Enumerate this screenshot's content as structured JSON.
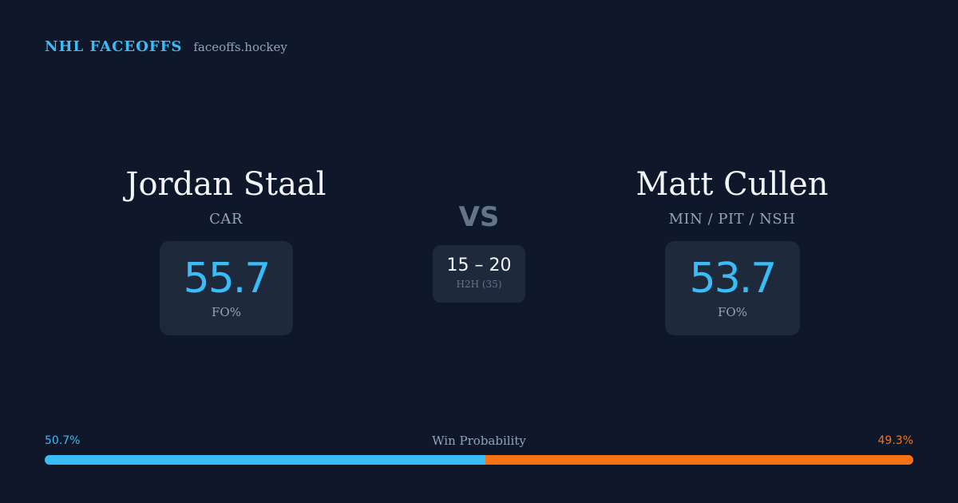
{
  "brand": {
    "name": "NHL FACEOFFS",
    "url": "faceoffs.hockey"
  },
  "player_left": {
    "name": "Jordan Staal",
    "team": "CAR",
    "fo_value": "55.7",
    "fo_label": "FO%"
  },
  "player_right": {
    "name": "Matt Cullen",
    "team": "MIN / PIT / NSH",
    "fo_value": "53.7",
    "fo_label": "FO%"
  },
  "versus": "VS",
  "h2h": {
    "score": "15 – 20",
    "label": "H2H (35)"
  },
  "win_probability": {
    "title": "Win Probability",
    "left_label": "50.7%",
    "right_label": "49.3%",
    "left_fraction": 0.507,
    "right_fraction": 0.493
  },
  "colors": {
    "background": "#0f172a",
    "card": "#1e293b",
    "accent_left": "#38bdf8",
    "accent_right": "#f97316"
  }
}
